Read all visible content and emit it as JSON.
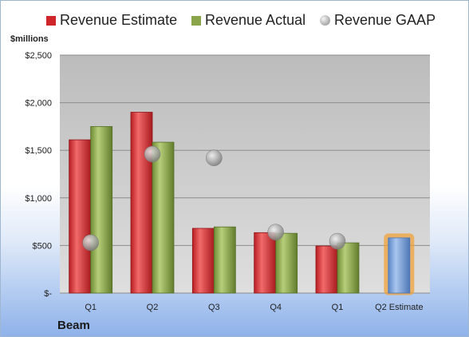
{
  "chart_data": {
    "type": "bar",
    "title": "",
    "ylabel": "$millions",
    "xlabel": "",
    "company": "Beam",
    "categories": [
      "Q1",
      "Q2",
      "Q3",
      "Q4",
      "Q1",
      "Q2 Estimate"
    ],
    "ylim": [
      0,
      2500
    ],
    "yticks": [
      0,
      500,
      1000,
      1500,
      2000,
      2500
    ],
    "ytick_labels": [
      "$-",
      "$500",
      "$1,000",
      "$1,500",
      "$2,000",
      "$2,500"
    ],
    "grid": true,
    "legend_position": "top",
    "series": [
      {
        "name": "Revenue Estimate",
        "kind": "bar",
        "color": "#d0262b",
        "values": [
          1610,
          1900,
          680,
          635,
          495,
          580
        ]
      },
      {
        "name": "Revenue Actual",
        "kind": "bar",
        "color": "#8aa54a",
        "values": [
          1750,
          1585,
          695,
          628,
          528,
          null
        ]
      },
      {
        "name": "Revenue GAAP",
        "kind": "marker",
        "color": "#a5a5a5",
        "values": [
          530,
          1460,
          1420,
          640,
          545,
          null
        ]
      }
    ],
    "highlight_category": "Q2 Estimate",
    "highlight_color": "#6f9bd8",
    "highlight_glow": "#f2a23a"
  }
}
